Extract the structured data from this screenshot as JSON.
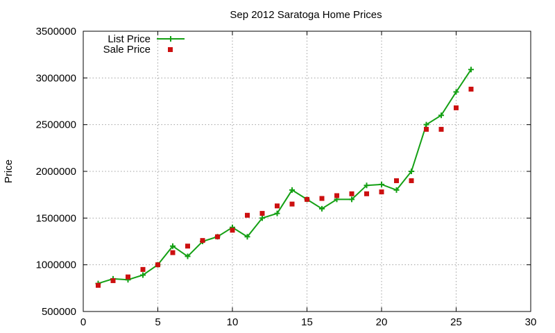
{
  "chart_data": {
    "type": "line",
    "title": "Sep 2012 Saratoga Home Prices",
    "xlabel": "",
    "ylabel": "Price",
    "xlim": [
      0,
      30
    ],
    "ylim": [
      500000,
      3500000
    ],
    "x_ticks": [
      0,
      5,
      10,
      15,
      20,
      25,
      30
    ],
    "y_ticks": [
      500000,
      1000000,
      1500000,
      2000000,
      2500000,
      3000000,
      3500000
    ],
    "grid": true,
    "legend_position": "top-left",
    "series": [
      {
        "name": "List Price",
        "style": "lines+points",
        "marker": "plus",
        "color": "#14a014",
        "x": [
          1,
          2,
          3,
          4,
          5,
          6,
          7,
          8,
          9,
          10,
          11,
          12,
          13,
          14,
          15,
          16,
          17,
          18,
          19,
          20,
          21,
          22,
          23,
          24,
          25,
          26
        ],
        "y": [
          800000,
          850000,
          840000,
          890000,
          1000000,
          1200000,
          1090000,
          1250000,
          1300000,
          1400000,
          1300000,
          1500000,
          1550000,
          1800000,
          1700000,
          1600000,
          1700000,
          1700000,
          1850000,
          1860000,
          1800000,
          2000000,
          2500000,
          2600000,
          2850000,
          3090000
        ]
      },
      {
        "name": "Sale Price",
        "style": "points",
        "marker": "square",
        "color": "#cc1010",
        "x": [
          1,
          2,
          3,
          4,
          5,
          6,
          7,
          8,
          9,
          10,
          11,
          12,
          13,
          14,
          15,
          16,
          17,
          18,
          19,
          20,
          21,
          22,
          23,
          24,
          25,
          26
        ],
        "y": [
          780000,
          830000,
          870000,
          950000,
          1000000,
          1130000,
          1200000,
          1260000,
          1300000,
          1370000,
          1530000,
          1550000,
          1630000,
          1650000,
          1700000,
          1710000,
          1740000,
          1760000,
          1760000,
          1780000,
          1900000,
          1900000,
          2450000,
          2450000,
          2680000,
          2880000
        ]
      }
    ]
  }
}
